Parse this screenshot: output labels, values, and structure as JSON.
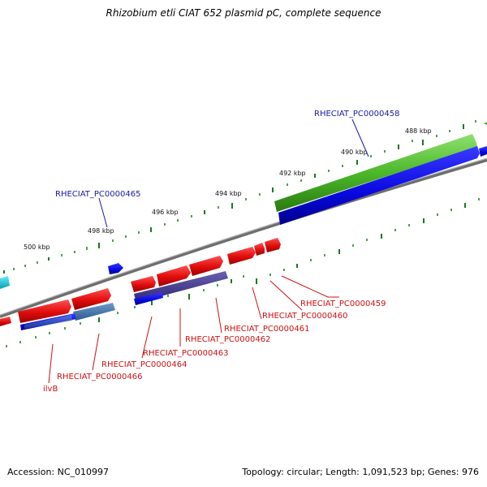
{
  "title": "Rhizobium etli CIAT 652 plasmid pC, complete sequence",
  "footer": {
    "accession": "Accession: NC_010997",
    "topology": "Topology: circular; Length: 1,091,523 bp; Genes: 976"
  },
  "scale_labels": [
    "488 kbp",
    "490 kbp",
    "492 kbp",
    "494 kbp",
    "496 kbp",
    "498 kbp",
    "500 kbp"
  ],
  "gene_labels_outer": [
    "RHECIAT_PC0000458",
    "RHECIAT_PC0000465"
  ],
  "gene_labels_inner": [
    "RHECIAT_PC0000459",
    "RHECIAT_PC0000460",
    "RHECIAT_PC0000461",
    "RHECIAT_PC0000462",
    "RHECIAT_PC0000463",
    "RHECIAT_PC0000464",
    "RHECIAT_PC0000466",
    "ilvB"
  ],
  "colors": {
    "outer_label": "#1a1aa6",
    "inner_label": "#cc1111",
    "backbone": "#8a8a8a",
    "tick": "#1a7a1a",
    "forward_gene": "#e01010",
    "reverse_gene": "#0a0ae0",
    "rna_track": "#4caf20",
    "accent_track": "#4a3f8f",
    "steel_track": "#3f6f9f",
    "cyan_gene": "#10c8d8"
  }
}
